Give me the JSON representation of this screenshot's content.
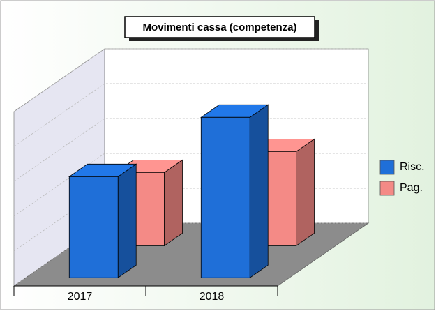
{
  "chart_data": {
    "type": "bar3d",
    "title": "Movimenti cassa (competenza)",
    "categories": [
      "2017",
      "2018"
    ],
    "series": [
      {
        "name": "Risc.",
        "color": "#1f6fd8",
        "values": [
          2.9,
          4.6
        ]
      },
      {
        "name": "Pag.",
        "color": "#f48a86",
        "values": [
          2.1,
          2.7
        ]
      }
    ],
    "ylim": [
      0,
      5
    ],
    "yticks": [
      0,
      1,
      2,
      3,
      4,
      5
    ],
    "grid": true,
    "legend": "right"
  }
}
